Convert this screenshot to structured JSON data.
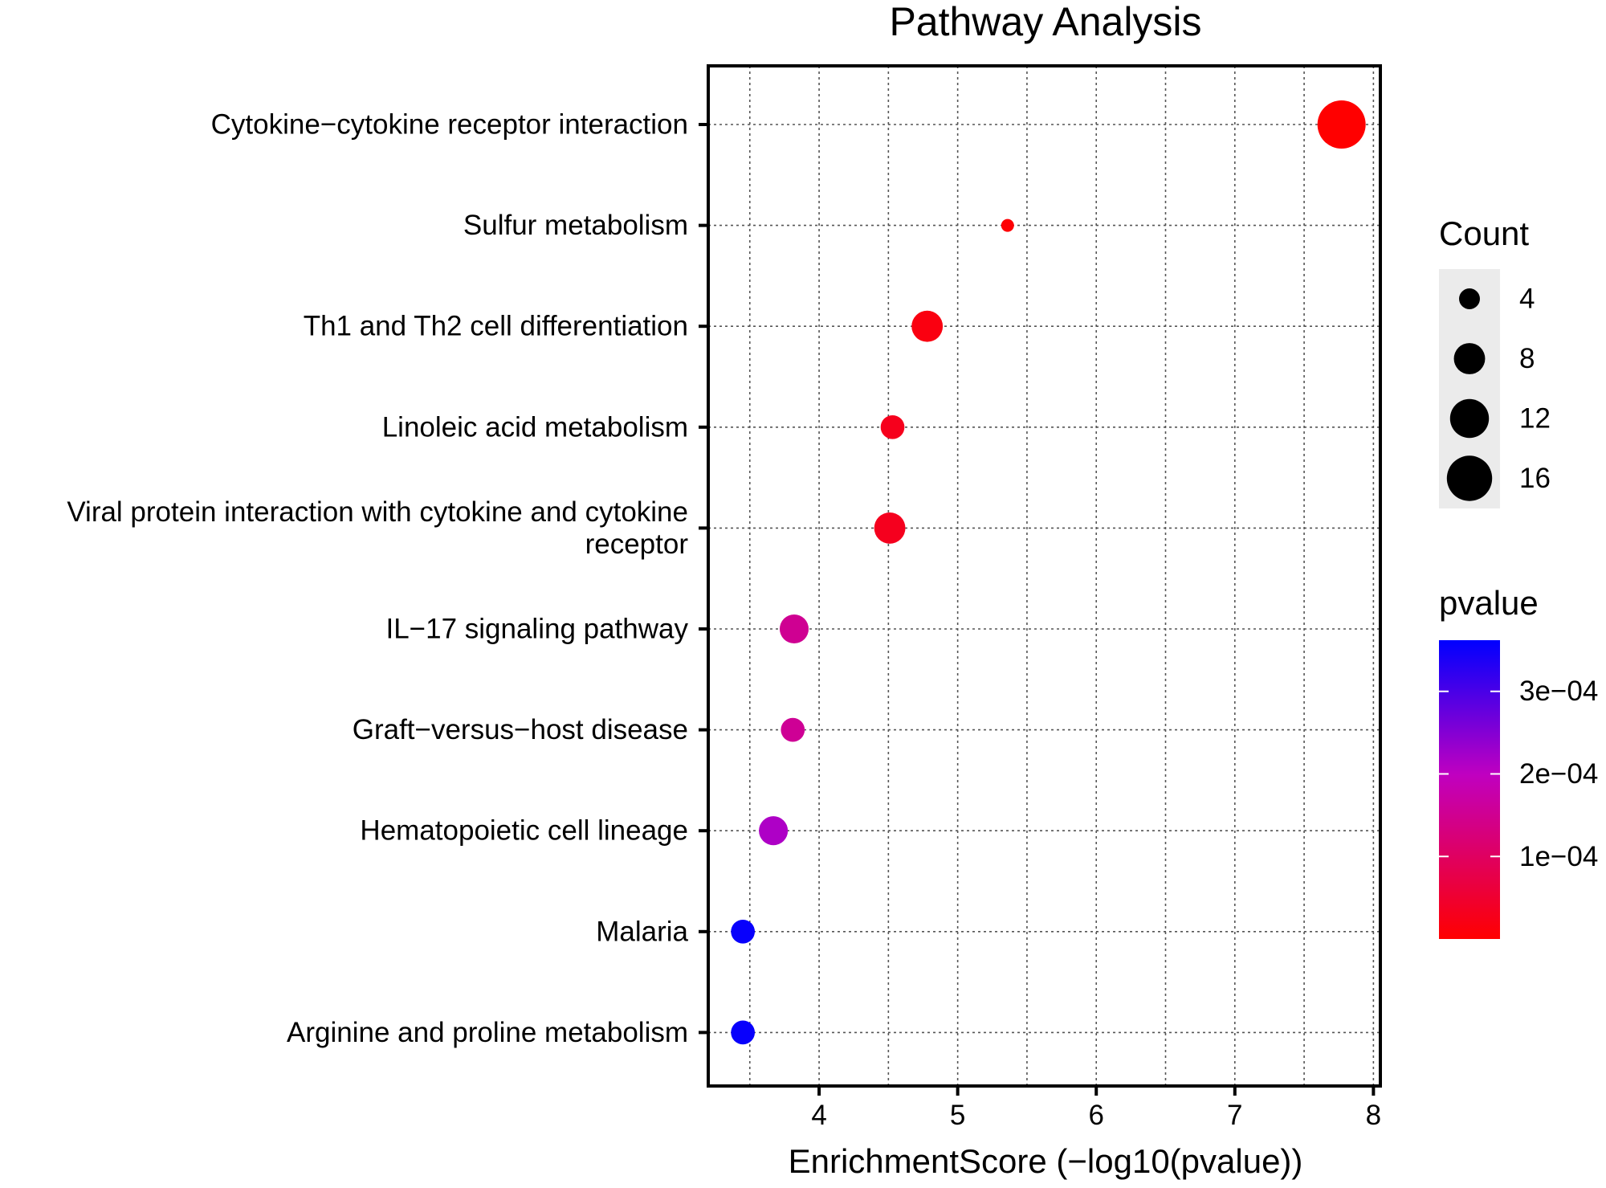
{
  "chart_data": {
    "type": "scatter",
    "title": "Pathway Analysis",
    "xlabel": "EnrichmentScore (−log10(pvalue))",
    "ylabel": "",
    "xlim": [
      3.2,
      8.05
    ],
    "x_ticks": [
      {
        "value": 4,
        "label": "4"
      },
      {
        "value": 5,
        "label": "5"
      },
      {
        "value": 6,
        "label": "6"
      },
      {
        "value": 7,
        "label": "7"
      },
      {
        "value": 8,
        "label": "8"
      }
    ],
    "grid": true,
    "points": [
      {
        "label_lines": [
          "Cytokine−cytokine receptor interaction"
        ],
        "x": 7.77,
        "count": 18,
        "pvalue": 1.7e-08
      },
      {
        "label_lines": [
          "Sulfur metabolism"
        ],
        "x": 5.36,
        "count": 2,
        "pvalue": 4.4e-06
      },
      {
        "label_lines": [
          "Th1 and Th2 cell differentiation"
        ],
        "x": 4.78,
        "count": 8,
        "pvalue": 1.66e-05
      },
      {
        "label_lines": [
          "Linoleic acid metabolism"
        ],
        "x": 4.53,
        "count": 5,
        "pvalue": 2.95e-05
      },
      {
        "label_lines": [
          "Viral protein interaction with cytokine and cytokine",
          "receptor"
        ],
        "x": 4.51,
        "count": 8,
        "pvalue": 3.09e-05
      },
      {
        "label_lines": [
          "IL−17 signaling pathway"
        ],
        "x": 3.82,
        "count": 7,
        "pvalue": 0.000151
      },
      {
        "label_lines": [
          "Graft−versus−host disease"
        ],
        "x": 3.81,
        "count": 5,
        "pvalue": 0.000155
      },
      {
        "label_lines": [
          "Hematopoietic cell lineage"
        ],
        "x": 3.67,
        "count": 7,
        "pvalue": 0.000214
      },
      {
        "label_lines": [
          "Malaria"
        ],
        "x": 3.45,
        "count": 5,
        "pvalue": 0.000355
      },
      {
        "label_lines": [
          "Arginine and proline metabolism"
        ],
        "x": 3.45,
        "count": 5,
        "pvalue": 0.000355
      }
    ],
    "size_legend": {
      "title": "Count",
      "entries": [
        {
          "value": 4,
          "label": "4"
        },
        {
          "value": 8,
          "label": "8"
        },
        {
          "value": 12,
          "label": "12"
        },
        {
          "value": 16,
          "label": "16"
        }
      ]
    },
    "color_legend": {
      "title": "pvalue",
      "range": [
        1.7e-08,
        0.000362
      ],
      "low_color": "#ff0000",
      "high_color": "#0000ff",
      "mid_color": "#c000c0",
      "ticks": [
        {
          "value": 0.0003,
          "label": "3e−04"
        },
        {
          "value": 0.0002,
          "label": "2e−04"
        },
        {
          "value": 0.0001,
          "label": "1e−04"
        }
      ]
    },
    "size_range": [
      2,
      18
    ]
  }
}
